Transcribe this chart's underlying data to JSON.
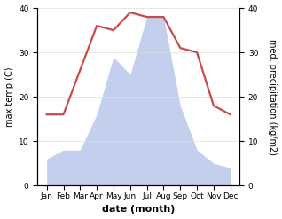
{
  "months": [
    "Jan",
    "Feb",
    "Mar",
    "Apr",
    "May",
    "Jun",
    "Jul",
    "Aug",
    "Sep",
    "Oct",
    "Nov",
    "Dec"
  ],
  "temperature": [
    16,
    16,
    26,
    36,
    35,
    39,
    38,
    38,
    31,
    30,
    18,
    16
  ],
  "precipitation": [
    6,
    8,
    8,
    16,
    29,
    25,
    38,
    38,
    18,
    8,
    5,
    4
  ],
  "temp_color": "#c84b4b",
  "precip_fill_color": "#b0bee8",
  "precip_alpha": 0.75,
  "ylabel_left": "max temp (C)",
  "ylabel_right": "med. precipitation (kg/m2)",
  "xlabel": "date (month)",
  "yticks": [
    0,
    10,
    20,
    30,
    40
  ],
  "ylim": [
    0,
    40
  ],
  "background_color": "#ffffff",
  "temp_linewidth": 1.6,
  "xlabel_fontsize": 8,
  "ylabel_fontsize": 7,
  "tick_fontsize": 6.5
}
